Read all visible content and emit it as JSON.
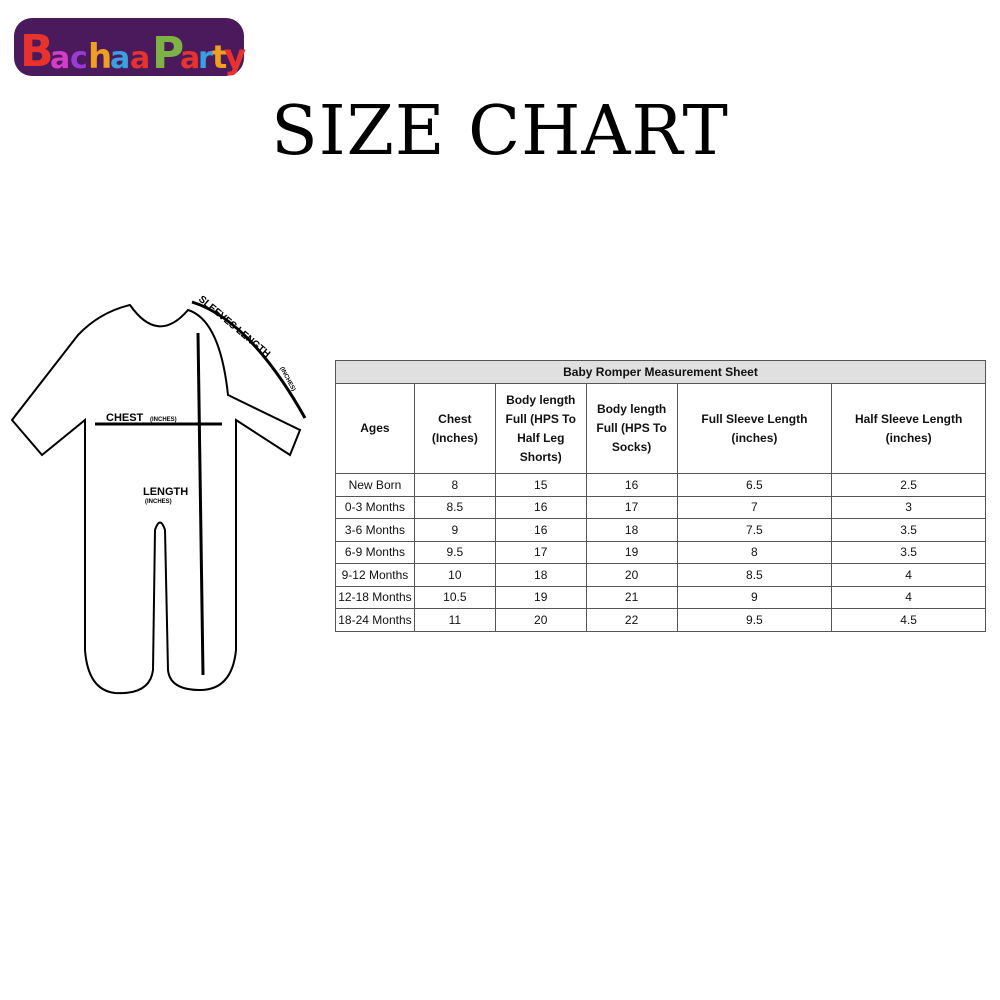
{
  "logo": {
    "text": "BachaaParty"
  },
  "title": "SIZE CHART",
  "diagram": {
    "sleeve_label": "SLEEVES LENGTH",
    "sleeve_unit": "(INCHES)",
    "chest_label": "CHEST",
    "chest_unit": "(INCHES)",
    "length_label": "LENGTH",
    "length_unit": "(INCHES)"
  },
  "table": {
    "caption": "Baby Romper Measurement Sheet",
    "headers": [
      "Ages",
      "Chest (Inches)",
      "Body length Full (HPS To Half Leg Shorts)",
      "Body length Full (HPS To Socks)",
      "Full Sleeve Length (inches)",
      "Half Sleeve Length (inches)"
    ],
    "rows": [
      [
        "New Born",
        "8",
        "15",
        "16",
        "6.5",
        "2.5"
      ],
      [
        "0-3 Months",
        "8.5",
        "16",
        "17",
        "7",
        "3"
      ],
      [
        "3-6 Months",
        "9",
        "16",
        "18",
        "7.5",
        "3.5"
      ],
      [
        "6-9 Months",
        "9.5",
        "17",
        "19",
        "8",
        "3.5"
      ],
      [
        "9-12 Months",
        "10",
        "18",
        "20",
        "8.5",
        "4"
      ],
      [
        "12-18 Months",
        "10.5",
        "19",
        "21",
        "9",
        "4"
      ],
      [
        "18-24 Months",
        "11",
        "20",
        "22",
        "9.5",
        "4.5"
      ]
    ]
  }
}
